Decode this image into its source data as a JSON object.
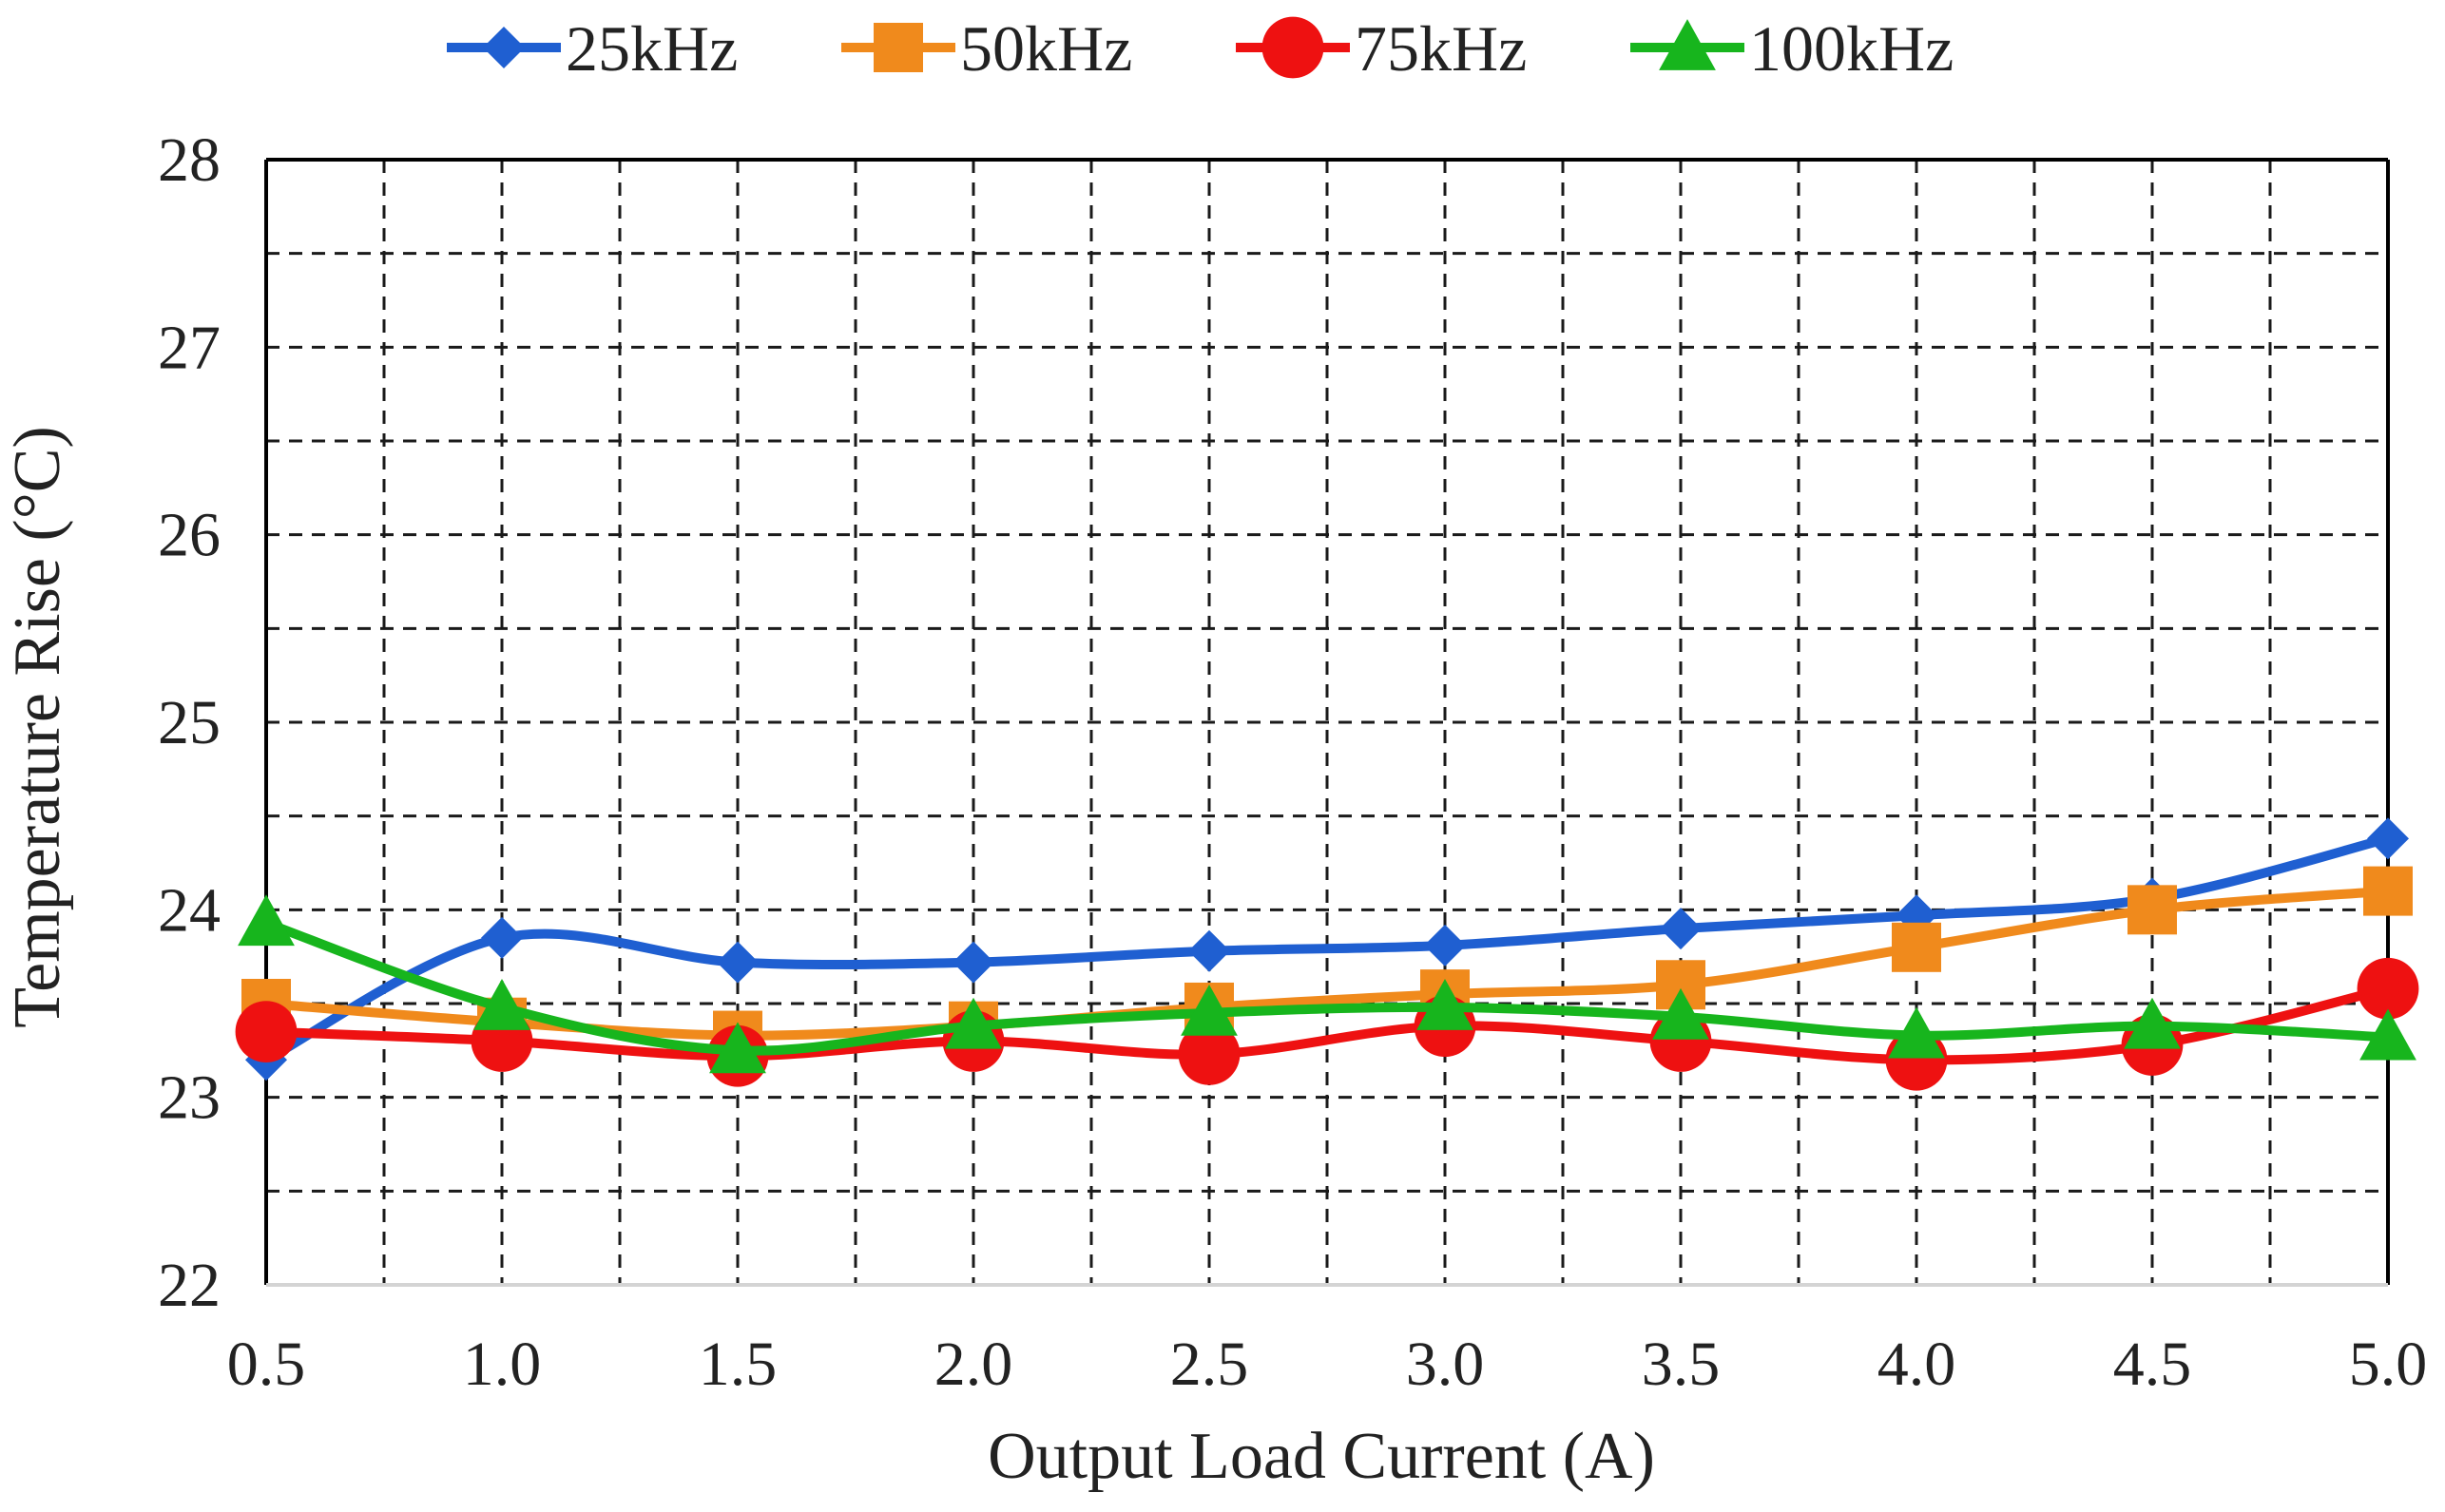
{
  "chart_data": {
    "type": "line",
    "title": "",
    "xlabel": "Output Load Current (A)",
    "ylabel": "Temperature Rise (°C)",
    "x": [
      0.5,
      1.0,
      1.5,
      2.0,
      2.5,
      3.0,
      3.5,
      4.0,
      4.5,
      5.0
    ],
    "x_tick_labels": [
      "0.5",
      "1.0",
      "1.5",
      "2.0",
      "2.5",
      "3.0",
      "3.5",
      "4.0",
      "4.5",
      "5.0"
    ],
    "xlim": [
      0.5,
      5.0
    ],
    "ylim": [
      22,
      28
    ],
    "y_ticks": [
      22,
      23,
      24,
      25,
      26,
      27,
      28
    ],
    "y_tick_labels": [
      "22",
      "23",
      "24",
      "25",
      "26",
      "27",
      "28"
    ],
    "x_minor_step": 0.25,
    "y_minor_step": 0.5,
    "grid": true,
    "grid_style": "dashed",
    "legend_position": "top",
    "smooth": true,
    "series": [
      {
        "name": "25kHz",
        "marker": "diamond",
        "color": "#1f5fd1",
        "values": [
          23.2,
          23.85,
          23.72,
          23.72,
          23.78,
          23.81,
          23.9,
          23.97,
          24.06,
          24.38
        ]
      },
      {
        "name": "50kHz",
        "marker": "square",
        "color": "#f08a1c",
        "values": [
          23.5,
          23.4,
          23.33,
          23.38,
          23.48,
          23.55,
          23.6,
          23.8,
          24.0,
          24.1
        ]
      },
      {
        "name": "75kHz",
        "marker": "circle",
        "color": "#ee1111",
        "values": [
          23.35,
          23.3,
          23.22,
          23.3,
          23.23,
          23.38,
          23.3,
          23.2,
          23.28,
          23.58
        ]
      },
      {
        "name": "100kHz",
        "marker": "triangle",
        "color": "#17b51d",
        "values": [
          23.93,
          23.48,
          23.25,
          23.38,
          23.45,
          23.48,
          23.43,
          23.33,
          23.38,
          23.32
        ]
      }
    ]
  }
}
